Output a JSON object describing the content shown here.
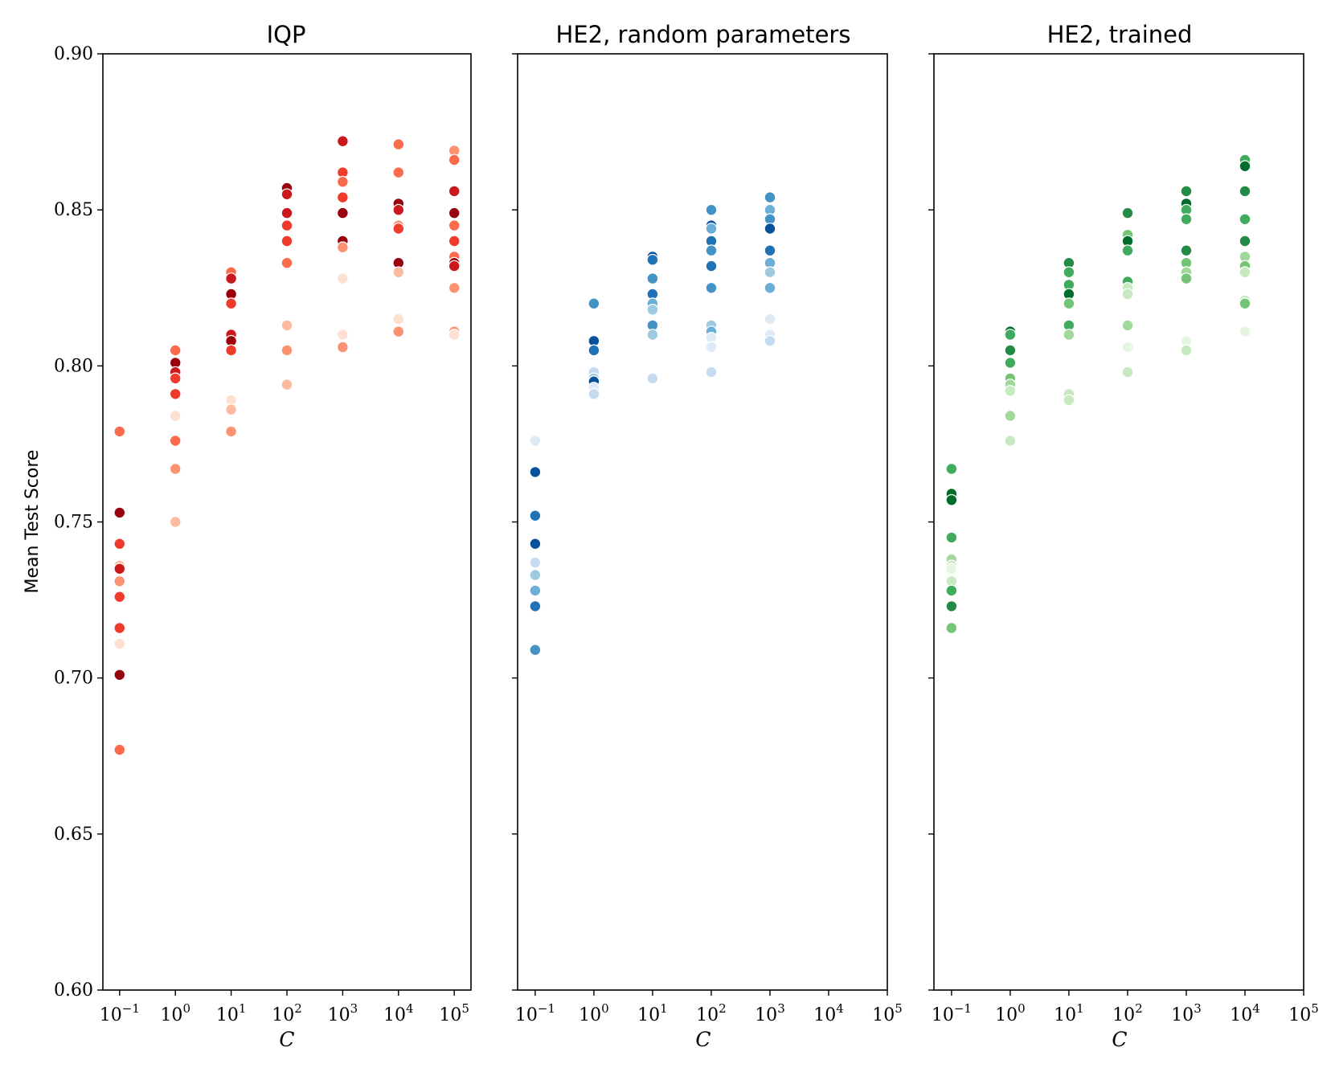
{
  "chart_data": [
    {
      "type": "scatter",
      "title": "IQP",
      "xlabel": "C",
      "ylabel": "Mean Test Score",
      "x_scale": "log10",
      "x_ticks": [
        -1,
        0,
        1,
        2,
        3,
        4,
        5
      ],
      "xlim": [
        -1.3,
        5.3
      ],
      "ylim": [
        0.6,
        0.9
      ],
      "y_ticks": [
        "0.60",
        "0.65",
        "0.70",
        "0.75",
        "0.80",
        "0.85",
        "0.90"
      ],
      "palette": [
        "#fee0d2",
        "#fcbba1",
        "#fc9272",
        "#fb6a4a",
        "#ef3b2c",
        "#cb181d",
        "#99000d"
      ],
      "points": [
        [
          -1,
          0.779,
          3
        ],
        [
          -1,
          0.753,
          6
        ],
        [
          -1,
          0.743,
          4
        ],
        [
          -1,
          0.736,
          1
        ],
        [
          -1,
          0.735,
          5
        ],
        [
          -1,
          0.731,
          2
        ],
        [
          -1,
          0.726,
          4
        ],
        [
          -1,
          0.716,
          4
        ],
        [
          -1,
          0.711,
          0
        ],
        [
          -1,
          0.701,
          6
        ],
        [
          -1,
          0.677,
          3
        ],
        [
          0,
          0.805,
          3
        ],
        [
          0,
          0.801,
          6
        ],
        [
          0,
          0.798,
          5
        ],
        [
          0,
          0.796,
          4
        ],
        [
          0,
          0.791,
          4
        ],
        [
          0,
          0.784,
          0
        ],
        [
          0,
          0.776,
          3
        ],
        [
          0,
          0.767,
          2
        ],
        [
          0,
          0.75,
          1
        ],
        [
          1,
          0.83,
          3
        ],
        [
          1,
          0.828,
          5
        ],
        [
          1,
          0.823,
          6
        ],
        [
          1,
          0.82,
          4
        ],
        [
          1,
          0.81,
          5
        ],
        [
          1,
          0.808,
          6
        ],
        [
          1,
          0.805,
          4
        ],
        [
          1,
          0.789,
          0
        ],
        [
          1,
          0.786,
          1
        ],
        [
          1,
          0.779,
          2
        ],
        [
          2,
          0.857,
          6
        ],
        [
          2,
          0.855,
          5
        ],
        [
          2,
          0.849,
          5
        ],
        [
          2,
          0.845,
          4
        ],
        [
          2,
          0.84,
          4
        ],
        [
          2,
          0.833,
          3
        ],
        [
          2,
          0.813,
          1
        ],
        [
          2,
          0.805,
          2
        ],
        [
          2,
          0.794,
          1
        ],
        [
          3,
          0.872,
          5
        ],
        [
          3,
          0.862,
          4
        ],
        [
          3,
          0.859,
          3
        ],
        [
          3,
          0.854,
          4
        ],
        [
          3,
          0.849,
          6
        ],
        [
          3,
          0.84,
          6
        ],
        [
          3,
          0.838,
          2
        ],
        [
          3,
          0.828,
          0
        ],
        [
          3,
          0.81,
          0
        ],
        [
          3,
          0.806,
          2
        ],
        [
          4,
          0.871,
          3
        ],
        [
          4,
          0.862,
          3
        ],
        [
          4,
          0.852,
          6
        ],
        [
          4,
          0.85,
          5
        ],
        [
          4,
          0.845,
          2
        ],
        [
          4,
          0.844,
          4
        ],
        [
          4,
          0.833,
          6
        ],
        [
          4,
          0.83,
          1
        ],
        [
          4,
          0.815,
          0
        ],
        [
          4,
          0.811,
          2
        ],
        [
          5,
          0.869,
          2
        ],
        [
          5,
          0.866,
          3
        ],
        [
          5,
          0.856,
          5
        ],
        [
          5,
          0.849,
          6
        ],
        [
          5,
          0.845,
          3
        ],
        [
          5,
          0.84,
          4
        ],
        [
          5,
          0.835,
          3
        ],
        [
          5,
          0.833,
          6
        ],
        [
          5,
          0.832,
          5
        ],
        [
          5,
          0.825,
          2
        ],
        [
          5,
          0.811,
          2
        ],
        [
          5,
          0.81,
          0
        ]
      ]
    },
    {
      "type": "scatter",
      "title": "HE2, random parameters",
      "xlabel": "C",
      "ylabel": "",
      "x_scale": "log10",
      "x_ticks": [
        -1,
        0,
        1,
        2,
        3,
        4,
        5
      ],
      "xlim": [
        -1.3,
        5.0
      ],
      "ylim": [
        0.6,
        0.9
      ],
      "y_ticks": [],
      "palette": [
        "#deebf7",
        "#c6dbef",
        "#9ecae1",
        "#6baed6",
        "#4292c6",
        "#2171b5",
        "#08519c"
      ],
      "points": [
        [
          -1,
          0.776,
          0
        ],
        [
          -1,
          0.766,
          6
        ],
        [
          -1,
          0.752,
          5
        ],
        [
          -1,
          0.743,
          6
        ],
        [
          -1,
          0.737,
          1
        ],
        [
          -1,
          0.733,
          2
        ],
        [
          -1,
          0.728,
          3
        ],
        [
          -1,
          0.723,
          5
        ],
        [
          -1,
          0.709,
          4
        ],
        [
          0,
          0.82,
          4
        ],
        [
          0,
          0.808,
          6
        ],
        [
          0,
          0.805,
          5
        ],
        [
          0,
          0.798,
          1
        ],
        [
          0,
          0.796,
          2
        ],
        [
          0,
          0.795,
          6
        ],
        [
          0,
          0.793,
          0
        ],
        [
          0,
          0.791,
          1
        ],
        [
          1,
          0.835,
          6
        ],
        [
          1,
          0.834,
          5
        ],
        [
          1,
          0.828,
          4
        ],
        [
          1,
          0.823,
          5
        ],
        [
          1,
          0.82,
          3
        ],
        [
          1,
          0.818,
          2
        ],
        [
          1,
          0.813,
          4
        ],
        [
          1,
          0.81,
          2
        ],
        [
          1,
          0.796,
          1
        ],
        [
          2,
          0.85,
          4
        ],
        [
          2,
          0.845,
          6
        ],
        [
          2,
          0.844,
          3
        ],
        [
          2,
          0.84,
          5
        ],
        [
          2,
          0.837,
          4
        ],
        [
          2,
          0.832,
          5
        ],
        [
          2,
          0.825,
          4
        ],
        [
          2,
          0.813,
          2
        ],
        [
          2,
          0.811,
          3
        ],
        [
          2,
          0.809,
          0
        ],
        [
          2,
          0.806,
          0
        ],
        [
          2,
          0.798,
          1
        ],
        [
          3,
          0.854,
          4
        ],
        [
          3,
          0.85,
          3
        ],
        [
          3,
          0.847,
          4
        ],
        [
          3,
          0.844,
          6
        ],
        [
          3,
          0.837,
          5
        ],
        [
          3,
          0.833,
          3
        ],
        [
          3,
          0.83,
          2
        ],
        [
          3,
          0.825,
          3
        ],
        [
          3,
          0.815,
          0
        ],
        [
          3,
          0.81,
          0
        ],
        [
          3,
          0.808,
          1
        ]
      ]
    },
    {
      "type": "scatter",
      "title": "HE2, trained",
      "xlabel": "C",
      "ylabel": "",
      "x_scale": "log10",
      "x_ticks": [
        -1,
        0,
        1,
        2,
        3,
        4,
        5
      ],
      "xlim": [
        -1.3,
        5.0
      ],
      "ylim": [
        0.6,
        0.9
      ],
      "y_ticks": [],
      "palette": [
        "#e5f5e0",
        "#c7e9c0",
        "#a1d99b",
        "#74c476",
        "#41ab5d",
        "#238b45",
        "#006d2c"
      ],
      "points": [
        [
          -1,
          0.767,
          4
        ],
        [
          -1,
          0.759,
          6
        ],
        [
          -1,
          0.757,
          6
        ],
        [
          -1,
          0.745,
          4
        ],
        [
          -1,
          0.738,
          2
        ],
        [
          -1,
          0.736,
          1
        ],
        [
          -1,
          0.735,
          0
        ],
        [
          -1,
          0.731,
          1
        ],
        [
          -1,
          0.728,
          4
        ],
        [
          -1,
          0.723,
          5
        ],
        [
          -1,
          0.716,
          3
        ],
        [
          0,
          0.811,
          6
        ],
        [
          0,
          0.81,
          4
        ],
        [
          0,
          0.805,
          5
        ],
        [
          0,
          0.801,
          4
        ],
        [
          0,
          0.796,
          3
        ],
        [
          0,
          0.794,
          2
        ],
        [
          0,
          0.792,
          1
        ],
        [
          0,
          0.784,
          2
        ],
        [
          0,
          0.776,
          1
        ],
        [
          1,
          0.833,
          5
        ],
        [
          1,
          0.83,
          4
        ],
        [
          1,
          0.826,
          4
        ],
        [
          1,
          0.823,
          6
        ],
        [
          1,
          0.82,
          3
        ],
        [
          1,
          0.813,
          4
        ],
        [
          1,
          0.81,
          2
        ],
        [
          1,
          0.791,
          1
        ],
        [
          1,
          0.789,
          1
        ],
        [
          2,
          0.849,
          5
        ],
        [
          2,
          0.842,
          3
        ],
        [
          2,
          0.84,
          6
        ],
        [
          2,
          0.837,
          4
        ],
        [
          2,
          0.827,
          4
        ],
        [
          2,
          0.825,
          1
        ],
        [
          2,
          0.823,
          1
        ],
        [
          2,
          0.813,
          2
        ],
        [
          2,
          0.806,
          0
        ],
        [
          2,
          0.798,
          1
        ],
        [
          3,
          0.856,
          5
        ],
        [
          3,
          0.852,
          6
        ],
        [
          3,
          0.85,
          4
        ],
        [
          3,
          0.847,
          4
        ],
        [
          3,
          0.837,
          5
        ],
        [
          3,
          0.833,
          3
        ],
        [
          3,
          0.83,
          2
        ],
        [
          3,
          0.828,
          3
        ],
        [
          3,
          0.808,
          0
        ],
        [
          3,
          0.805,
          1
        ],
        [
          4,
          0.866,
          4
        ],
        [
          4,
          0.864,
          6
        ],
        [
          4,
          0.856,
          5
        ],
        [
          4,
          0.847,
          4
        ],
        [
          4,
          0.84,
          5
        ],
        [
          4,
          0.835,
          2
        ],
        [
          4,
          0.832,
          3
        ],
        [
          4,
          0.83,
          1
        ],
        [
          4,
          0.821,
          1
        ],
        [
          4,
          0.82,
          3
        ],
        [
          4,
          0.811,
          0
        ]
      ]
    }
  ]
}
